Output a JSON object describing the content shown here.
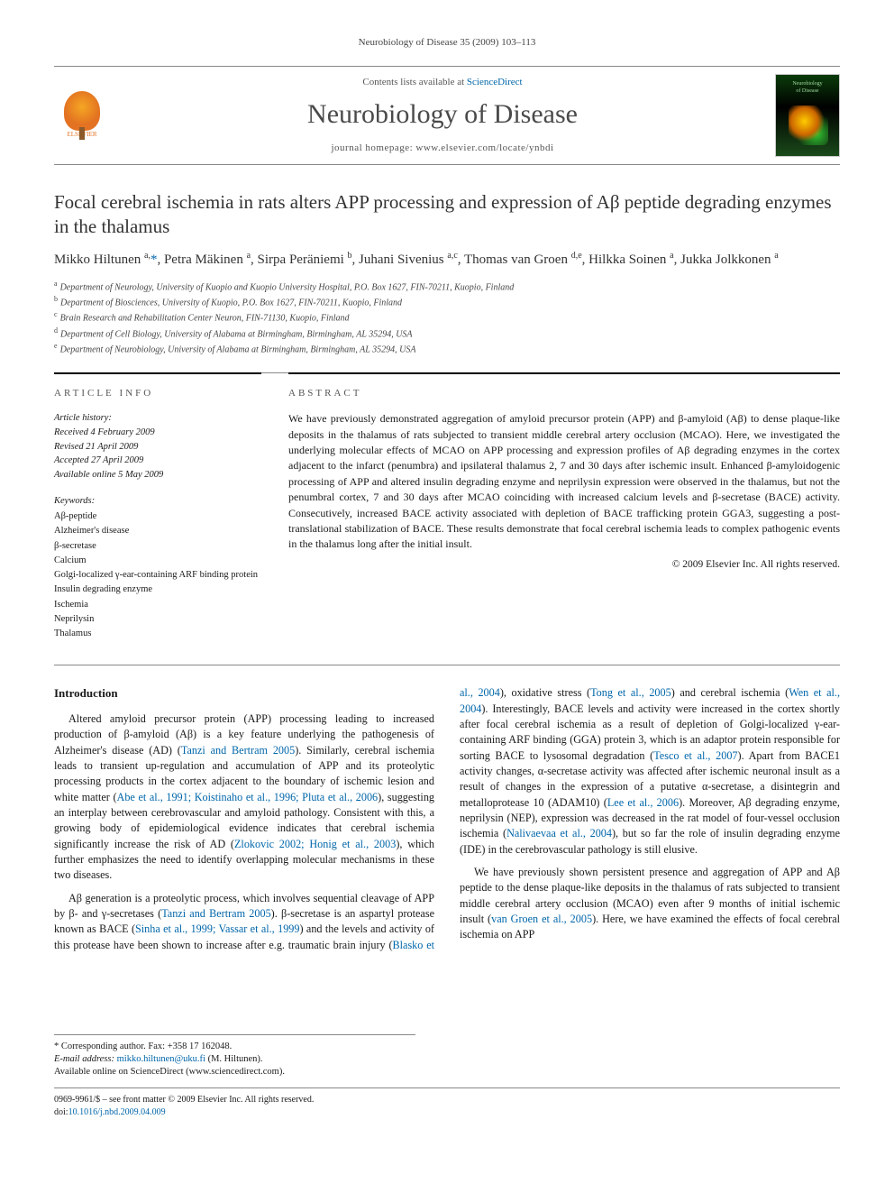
{
  "running_head": "Neurobiology of Disease 35 (2009) 103–113",
  "masthead": {
    "contents_prefix": "Contents lists available at ",
    "contents_link": "ScienceDirect",
    "journal_name": "Neurobiology of Disease",
    "homepage_label": "journal homepage: www.elsevier.com/locate/ynbdi",
    "publisher_label": "ELSEVIER",
    "cover_text": "Neurobiology\nof Disease"
  },
  "article": {
    "title": "Focal cerebral ischemia in rats alters APP processing and expression of Aβ peptide degrading enzymes in the thalamus",
    "authors_html": "Mikko Hiltunen <sup>a,</sup><a class='star' href='#'>*</a>, Petra Mäkinen <sup>a</sup>, Sirpa Peräniemi <sup>b</sup>, Juhani Sivenius <sup>a,c</sup>, Thomas van Groen <sup>d,e</sup>, Hilkka Soinen <sup>a</sup>, Jukka Jolkkonen <sup>a</sup>",
    "affiliations": [
      {
        "key": "a",
        "text": "Department of Neurology, University of Kuopio and Kuopio University Hospital, P.O. Box 1627, FIN-70211, Kuopio, Finland"
      },
      {
        "key": "b",
        "text": "Department of Biosciences, University of Kuopio, P.O. Box 1627, FIN-70211, Kuopio, Finland"
      },
      {
        "key": "c",
        "text": "Brain Research and Rehabilitation Center Neuron, FIN-71130, Kuopio, Finland"
      },
      {
        "key": "d",
        "text": "Department of Cell Biology, University of Alabama at Birmingham, Birmingham, AL 35294, USA"
      },
      {
        "key": "e",
        "text": "Department of Neurobiology, University of Alabama at Birmingham, Birmingham, AL 35294, USA"
      }
    ]
  },
  "info": {
    "heading": "article info",
    "history_label": "Article history:",
    "received": "Received 4 February 2009",
    "revised": "Revised 21 April 2009",
    "accepted": "Accepted 27 April 2009",
    "online": "Available online 5 May 2009",
    "keywords_label": "Keywords:",
    "keywords": [
      "Aβ-peptide",
      "Alzheimer's disease",
      "β-secretase",
      "Calcium",
      "Golgi-localized γ-ear-containing ARF binding protein",
      "Insulin degrading enzyme",
      "Ischemia",
      "Neprilysin",
      "Thalamus"
    ]
  },
  "abstract": {
    "heading": "abstract",
    "text": "We have previously demonstrated aggregation of amyloid precursor protein (APP) and β-amyloid (Aβ) to dense plaque-like deposits in the thalamus of rats subjected to transient middle cerebral artery occlusion (MCAO). Here, we investigated the underlying molecular effects of MCAO on APP processing and expression profiles of Aβ degrading enzymes in the cortex adjacent to the infarct (penumbra) and ipsilateral thalamus 2, 7 and 30 days after ischemic insult. Enhanced β-amyloidogenic processing of APP and altered insulin degrading enzyme and neprilysin expression were observed in the thalamus, but not the penumbral cortex, 7 and 30 days after MCAO coinciding with increased calcium levels and β-secretase (BACE) activity. Consecutively, increased BACE activity associated with depletion of BACE trafficking protein GGA3, suggesting a post-translational stabilization of BACE. These results demonstrate that focal cerebral ischemia leads to complex pathogenic events in the thalamus long after the initial insult.",
    "copyright": "© 2009 Elsevier Inc. All rights reserved."
  },
  "body": {
    "intro_heading": "Introduction",
    "p1": "Altered amyloid precursor protein (APP) processing leading to increased production of β-amyloid (Aβ) is a key feature underlying the pathogenesis of Alzheimer's disease (AD) (",
    "p1_ref1": "Tanzi and Bertram 2005",
    "p1_b": "). Similarly, cerebral ischemia leads to transient up-regulation and accumulation of APP and its proteolytic processing products in the cortex adjacent to the boundary of ischemic lesion and white matter (",
    "p1_ref2": "Abe et al., 1991; Koistinaho et al., 1996; Pluta et al., 2006",
    "p1_c": "), suggesting an interplay between cerebrovascular and amyloid pathology. Consistent with this, a growing body of epidemiological evidence indicates that cerebral ischemia significantly increase the risk of AD (",
    "p1_ref3": "Zlokovic 2002; Honig et al., 2003",
    "p1_d": "), which further emphasizes the need to identify overlapping molecular mechanisms in these two diseases.",
    "p2a": "Aβ generation is a proteolytic process, which involves sequential cleavage of APP by β- and γ-secretases (",
    "p2_ref1": "Tanzi and Bertram 2005",
    "p2b": "). β-",
    "p3a": "secretase is an aspartyl protease known as BACE (",
    "p3_ref1": "Sinha et al., 1999; Vassar et al., 1999",
    "p3b": ") and the levels and activity of this protease have been shown to increase after e.g. traumatic brain injury (",
    "p3_ref2": "Blasko et al., 2004",
    "p3c": "), oxidative stress (",
    "p3_ref3": "Tong et al., 2005",
    "p3d": ") and cerebral ischemia (",
    "p3_ref4": "Wen et al., 2004",
    "p3e": "). Interestingly, BACE levels and activity were increased in the cortex shortly after focal cerebral ischemia as a result of depletion of Golgi-localized γ-ear-containing ARF binding (GGA) protein 3, which is an adaptor protein responsible for sorting BACE to lysosomal degradation (",
    "p3_ref5": "Tesco et al., 2007",
    "p3f": "). Apart from BACE1 activity changes, α-secretase activity was affected after ischemic neuronal insult as a result of changes in the expression of a putative α-secretase, a disintegrin and metalloprotease 10 (ADAM10) (",
    "p3_ref6": "Lee et al., 2006",
    "p3g": "). Moreover, Aβ degrading enzyme, neprilysin (NEP), expression was decreased in the rat model of four-vessel occlusion ischemia (",
    "p3_ref7": "Nalivaevaa et al., 2004",
    "p3h": "), but so far the role of insulin degrading enzyme (IDE) in the cerebrovascular pathology is still elusive.",
    "p4a": "We have previously shown persistent presence and aggregation of APP and Aβ peptide to the dense plaque-like deposits in the thalamus of rats subjected to transient middle cerebral artery occlusion (MCAO) even after 9 months of initial ischemic insult (",
    "p4_ref1": "van Groen et al., 2005",
    "p4b": "). Here, we have examined the effects of focal cerebral ischemia on APP"
  },
  "footer": {
    "corr_label": "* Corresponding author. Fax: +358 17 162048.",
    "email_label": "E-mail address: ",
    "email": "mikko.hiltunen@uku.fi",
    "email_suffix": " (M. Hiltunen).",
    "online_line": "Available online on ScienceDirect (www.sciencedirect.com).",
    "issn_line": "0969-9961/$ – see front matter © 2009 Elsevier Inc. All rights reserved.",
    "doi_label": "doi:",
    "doi": "10.1016/j.nbd.2009.04.009"
  },
  "colors": {
    "link": "#0066aa",
    "rule": "#888888",
    "text": "#1a1a1a",
    "elsevier_orange": "#e37222"
  }
}
